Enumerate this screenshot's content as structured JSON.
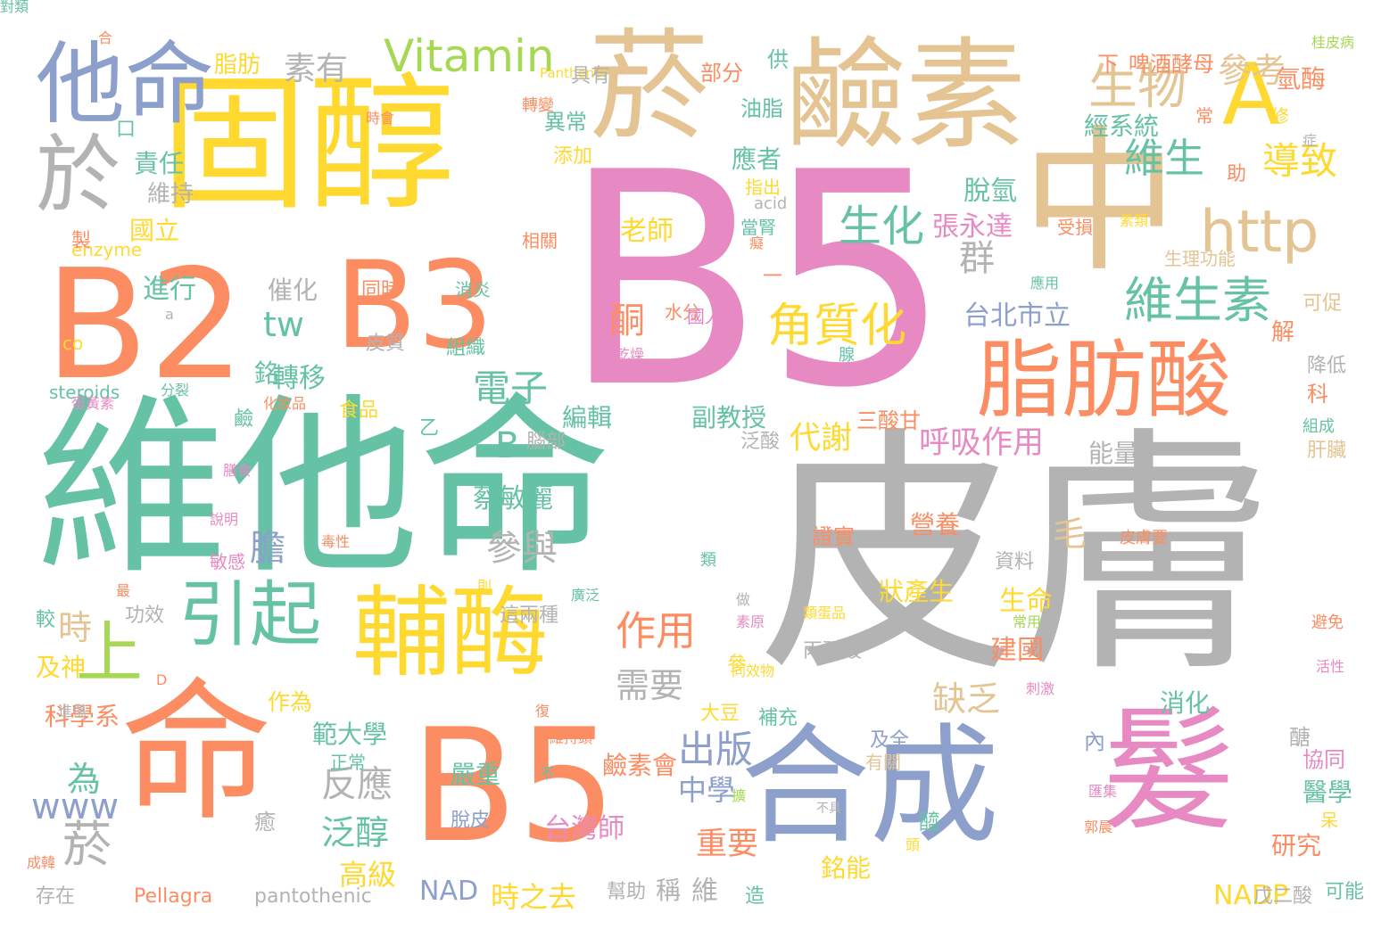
{
  "palette": {
    "teal": "#66c2a5",
    "orange": "#fc8d62",
    "blue": "#8da0cb",
    "pink": "#e78ac3",
    "green": "#a6d854",
    "yellow": "#ffd92f",
    "tan": "#e5c494",
    "gray": "#b3b3b3"
  },
  "words": [
    {
      "text": "B5",
      "color": "pink"
    },
    {
      "text": "皮膚",
      "color": "gray"
    },
    {
      "text": "維他命",
      "color": "teal"
    },
    {
      "text": "固醇",
      "color": "yellow"
    },
    {
      "text": "菸",
      "color": "tan"
    },
    {
      "text": "鹼素",
      "color": "tan"
    },
    {
      "text": "中",
      "color": "tan"
    },
    {
      "text": "B2",
      "color": "orange"
    },
    {
      "text": "B3",
      "color": "orange"
    },
    {
      "text": "命",
      "color": "orange"
    },
    {
      "text": "B5",
      "color": "orange"
    },
    {
      "text": "合成",
      "color": "blue"
    },
    {
      "text": "髮",
      "color": "pink"
    },
    {
      "text": "他命",
      "color": "blue"
    },
    {
      "text": "於",
      "color": "gray"
    },
    {
      "text": "A",
      "color": "yellow"
    },
    {
      "text": "脂肪酸",
      "color": "orange"
    },
    {
      "text": "輔酶",
      "color": "yellow"
    },
    {
      "text": "Vitamin",
      "color": "green"
    },
    {
      "text": "http",
      "color": "tan"
    },
    {
      "text": "引起",
      "color": "teal"
    },
    {
      "text": "上",
      "color": "green"
    },
    {
      "text": "生物",
      "color": "tan"
    },
    {
      "text": "維生素",
      "color": "teal"
    },
    {
      "text": "角質化",
      "color": "yellow"
    },
    {
      "text": "生化",
      "color": "teal"
    },
    {
      "text": "維生",
      "color": "teal"
    },
    {
      "text": "參考",
      "color": "tan"
    },
    {
      "text": "導致",
      "color": "yellow"
    },
    {
      "text": "素有",
      "color": "gray"
    },
    {
      "text": "電子",
      "color": "teal"
    },
    {
      "text": "作用",
      "color": "orange"
    },
    {
      "text": "呼吸作用",
      "color": "pink"
    },
    {
      "text": "代謝",
      "color": "yellow"
    },
    {
      "text": "群",
      "color": "gray"
    },
    {
      "text": "酮",
      "color": "orange"
    },
    {
      "text": "老師",
      "color": "yellow"
    },
    {
      "text": "參與",
      "color": "gray"
    },
    {
      "text": "出版",
      "color": "blue"
    },
    {
      "text": "缺乏",
      "color": "tan"
    },
    {
      "text": "需要",
      "color": "gray"
    },
    {
      "text": "反應",
      "color": "gray"
    },
    {
      "text": "泛醇",
      "color": "teal"
    },
    {
      "text": "菸",
      "color": "gray"
    },
    {
      "text": "為",
      "color": "teal"
    },
    {
      "text": "www",
      "color": "blue"
    },
    {
      "text": "tw",
      "color": "teal"
    },
    {
      "text": "B",
      "color": "teal"
    },
    {
      "text": "時",
      "color": "tan"
    },
    {
      "text": "膽",
      "color": "blue"
    },
    {
      "text": "毛",
      "color": "tan"
    },
    {
      "text": "台北市立",
      "color": "blue"
    },
    {
      "text": "張永達",
      "color": "pink"
    },
    {
      "text": "脫氫",
      "color": "teal"
    },
    {
      "text": "蔡敏麗",
      "color": "teal"
    },
    {
      "text": "台灣師",
      "color": "pink"
    },
    {
      "text": "範大學",
      "color": "teal"
    },
    {
      "text": "高級",
      "color": "yellow"
    },
    {
      "text": "中學",
      "color": "blue"
    },
    {
      "text": "重要",
      "color": "orange"
    },
    {
      "text": "時之去",
      "color": "yellow"
    },
    {
      "text": "NAD",
      "color": "blue"
    },
    {
      "text": "NADP",
      "color": "yellow"
    },
    {
      "text": "維",
      "color": "gray"
    },
    {
      "text": "轉移",
      "color": "teal"
    },
    {
      "text": "催化",
      "color": "gray"
    },
    {
      "text": "進行",
      "color": "teal"
    },
    {
      "text": "國立",
      "color": "yellow"
    },
    {
      "text": "責任",
      "color": "teal"
    },
    {
      "text": "維持",
      "color": "gray"
    },
    {
      "text": "脂肪",
      "color": "yellow"
    },
    {
      "text": "科學系",
      "color": "orange"
    },
    {
      "text": "及神",
      "color": "yellow"
    },
    {
      "text": "作為",
      "color": "yellow"
    },
    {
      "text": "副教授",
      "color": "teal"
    },
    {
      "text": "編輯",
      "color": "teal"
    },
    {
      "text": "建國",
      "color": "orange"
    },
    {
      "text": "生命",
      "color": "yellow"
    },
    {
      "text": "消化",
      "color": "teal"
    },
    {
      "text": "能量",
      "color": "gray"
    },
    {
      "text": "經系統",
      "color": "teal"
    },
    {
      "text": "應者",
      "color": "teal"
    },
    {
      "text": "啤酒酵母",
      "color": "orange"
    },
    {
      "text": "氫酶",
      "color": "orange"
    },
    {
      "text": "營養",
      "color": "orange"
    },
    {
      "text": "狀產生",
      "color": "yellow"
    },
    {
      "text": "鹼素會",
      "color": "orange"
    },
    {
      "text": "嚴重",
      "color": "teal"
    },
    {
      "text": "銘能",
      "color": "yellow"
    },
    {
      "text": "研究",
      "color": "orange"
    },
    {
      "text": "醫學",
      "color": "teal"
    },
    {
      "text": "協同",
      "color": "pink"
    },
    {
      "text": "Pellagra",
      "color": "orange"
    },
    {
      "text": "pantothenic",
      "color": "gray"
    },
    {
      "text": "steroids",
      "color": "teal"
    },
    {
      "text": "enzyme",
      "color": "yellow"
    },
    {
      "text": "acid",
      "color": "gray"
    },
    {
      "text": "Panthenol",
      "color": "yellow"
    },
    {
      "text": "生理功能",
      "color": "tan"
    },
    {
      "text": "受損",
      "color": "orange"
    },
    {
      "text": "三酸甘",
      "color": "orange"
    },
    {
      "text": "丙酮酸",
      "color": "gray"
    },
    {
      "text": "乙",
      "color": "teal"
    },
    {
      "text": "鹼",
      "color": "teal"
    },
    {
      "text": "異常",
      "color": "teal"
    },
    {
      "text": "油脂",
      "color": "teal"
    },
    {
      "text": "指出",
      "color": "yellow"
    },
    {
      "text": "當腎",
      "color": "teal"
    },
    {
      "text": "供",
      "color": "teal"
    },
    {
      "text": "部分",
      "color": "orange"
    },
    {
      "text": "下",
      "color": "orange"
    },
    {
      "text": "助",
      "color": "orange"
    },
    {
      "text": "解",
      "color": "orange"
    },
    {
      "text": "科",
      "color": "orange"
    },
    {
      "text": "降低",
      "color": "gray"
    },
    {
      "text": "可促",
      "color": "tan"
    },
    {
      "text": "肝臟",
      "color": "tan"
    },
    {
      "text": "組成",
      "color": "teal"
    },
    {
      "text": "資料",
      "color": "gray"
    },
    {
      "text": "及全",
      "color": "blue"
    },
    {
      "text": "有關",
      "color": "tan"
    },
    {
      "text": "補充",
      "color": "teal"
    },
    {
      "text": "大豆",
      "color": "yellow"
    },
    {
      "text": "泛酸",
      "color": "gray"
    },
    {
      "text": "腦部",
      "color": "gray"
    },
    {
      "text": "食品",
      "color": "yellow"
    },
    {
      "text": "皮質",
      "color": "gray"
    },
    {
      "text": "同時",
      "color": "orange"
    },
    {
      "text": "消炎",
      "color": "teal"
    },
    {
      "text": "組織",
      "color": "teal"
    },
    {
      "text": "相關",
      "color": "orange"
    },
    {
      "text": "這兩種",
      "color": "gray"
    },
    {
      "text": "功效",
      "color": "gray"
    },
    {
      "text": "脫皮",
      "color": "blue"
    },
    {
      "text": "正常",
      "color": "teal"
    },
    {
      "text": "存在",
      "color": "gray"
    },
    {
      "text": "可能",
      "color": "teal"
    },
    {
      "text": "戊二酸",
      "color": "gray"
    },
    {
      "text": "造",
      "color": "teal"
    },
    {
      "text": "幫助",
      "color": "gray"
    },
    {
      "text": "稱",
      "color": "gray"
    },
    {
      "text": "證實",
      "color": "orange"
    },
    {
      "text": "醯",
      "color": "teal"
    },
    {
      "text": "醣",
      "color": "gray"
    },
    {
      "text": "銘",
      "color": "teal"
    },
    {
      "text": "參",
      "color": "yellow"
    },
    {
      "text": "一",
      "color": "orange"
    },
    {
      "text": "類",
      "color": "teal"
    },
    {
      "text": "呆",
      "color": "yellow"
    },
    {
      "text": "內",
      "color": "blue"
    },
    {
      "text": "癒",
      "color": "gray"
    },
    {
      "text": "製",
      "color": "orange"
    },
    {
      "text": "較",
      "color": "teal"
    },
    {
      "text": "口",
      "color": "teal"
    },
    {
      "text": "合",
      "color": "orange"
    },
    {
      "text": "桂皮病",
      "color": "green"
    },
    {
      "text": "轉變",
      "color": "orange"
    },
    {
      "text": "具有",
      "color": "gray"
    },
    {
      "text": "添加",
      "color": "yellow"
    },
    {
      "text": "常",
      "color": "orange"
    },
    {
      "text": "修",
      "color": "yellow"
    },
    {
      "text": "症",
      "color": "gray"
    },
    {
      "text": "時會",
      "color": "orange"
    },
    {
      "text": "D",
      "color": "orange"
    },
    {
      "text": "a",
      "color": "gray"
    },
    {
      "text": "co",
      "color": "yellow"
    },
    {
      "text": "分裂",
      "color": "teal"
    },
    {
      "text": "化妝品",
      "color": "orange"
    },
    {
      "text": "蛋黃素",
      "color": "pink"
    },
    {
      "text": "乾燥",
      "color": "pink"
    },
    {
      "text": "水分",
      "color": "orange"
    },
    {
      "text": "國人",
      "color": "pink"
    },
    {
      "text": "腺",
      "color": "teal"
    },
    {
      "text": "癡",
      "color": "orange"
    },
    {
      "text": "素類",
      "color": "yellow"
    },
    {
      "text": "應用",
      "color": "teal"
    },
    {
      "text": "膳食",
      "color": "pink"
    },
    {
      "text": "說明",
      "color": "pink"
    },
    {
      "text": "敏感",
      "color": "pink"
    },
    {
      "text": "毒性",
      "color": "orange"
    },
    {
      "text": "最",
      "color": "orange"
    },
    {
      "text": "則",
      "color": "yellow"
    },
    {
      "text": "廣泛",
      "color": "teal"
    },
    {
      "text": "做",
      "color": "gray"
    },
    {
      "text": "類蛋品",
      "color": "yellow"
    },
    {
      "text": "常用",
      "color": "green"
    },
    {
      "text": "素原",
      "color": "pink"
    },
    {
      "text": "同效物",
      "color": "yellow"
    },
    {
      "text": "避免",
      "color": "orange"
    },
    {
      "text": "活性",
      "color": "pink"
    },
    {
      "text": "刺激",
      "color": "pink"
    },
    {
      "text": "皮膚要",
      "color": "orange"
    },
    {
      "text": "進傷",
      "color": "gray"
    },
    {
      "text": "可維持頭",
      "color": "orange"
    },
    {
      "text": "復",
      "color": "orange"
    },
    {
      "text": "不",
      "color": "teal"
    },
    {
      "text": "擴",
      "color": "green"
    },
    {
      "text": "不具",
      "color": "gray"
    },
    {
      "text": "頭",
      "color": "yellow"
    },
    {
      "text": "匯集",
      "color": "pink"
    },
    {
      "text": "郭晨",
      "color": "orange"
    },
    {
      "text": "成韓",
      "color": "orange"
    },
    {
      "text": "對類",
      "color": "teal"
    }
  ]
}
